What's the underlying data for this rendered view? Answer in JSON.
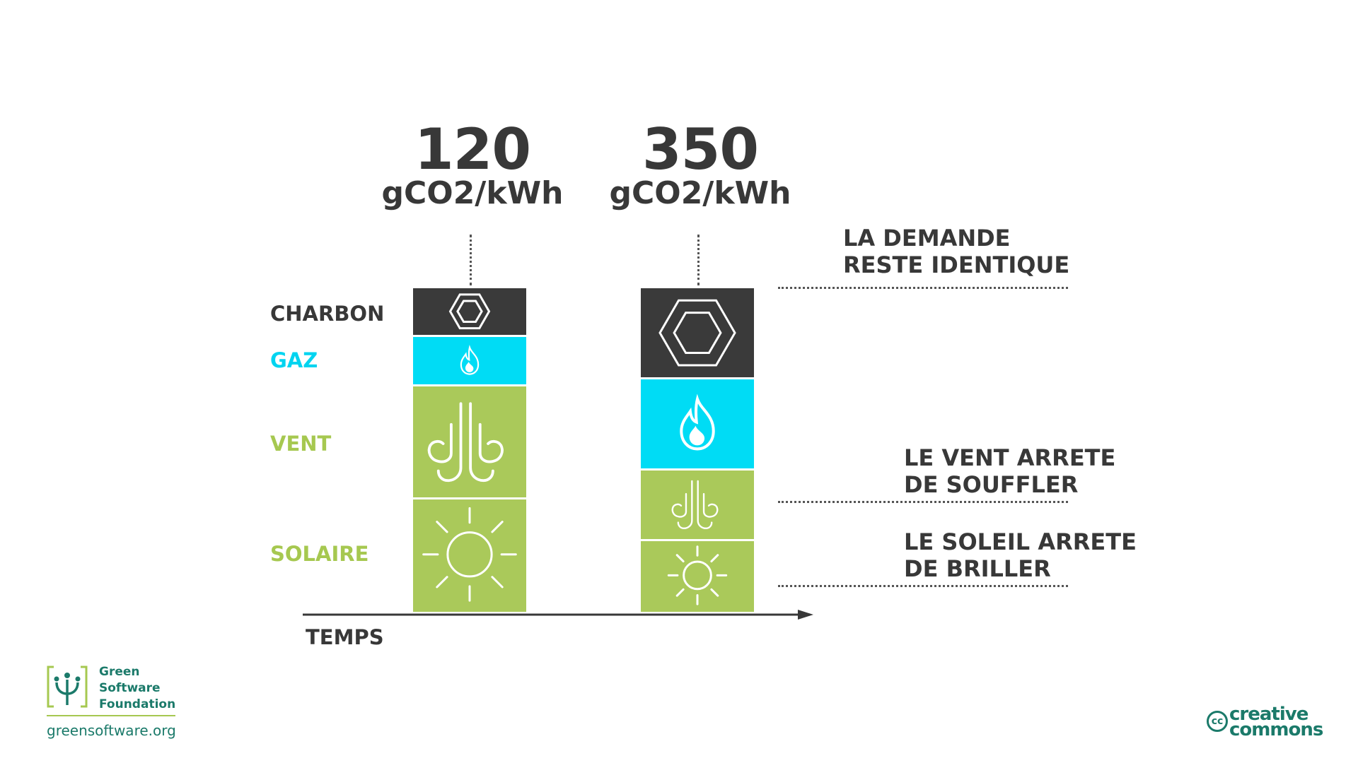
{
  "bars": [
    {
      "value": "120",
      "unit": "gCO2/kWh",
      "segments": [
        {
          "source": "CHARBON",
          "icon": "coal-hexagon-icon",
          "color": "#3a3a3a",
          "height_units": 7.0
        },
        {
          "source": "GAZ",
          "icon": "flame-icon",
          "color": "#00dcf5",
          "height_units": 7.2
        },
        {
          "source": "VENT",
          "icon": "wind-icon",
          "color": "#aac95a",
          "height_units": 16.4
        },
        {
          "source": "SOLAIRE",
          "icon": "sun-icon",
          "color": "#aac95a",
          "height_units": 16.2
        }
      ]
    },
    {
      "value": "350",
      "unit": "gCO2/kWh",
      "segments": [
        {
          "source": "CHARBON",
          "icon": "coal-hexagon-icon",
          "color": "#3a3a3a",
          "height_units": 13.2
        },
        {
          "source": "GAZ",
          "icon": "flame-icon",
          "color": "#00dcf5",
          "height_units": 13.2
        },
        {
          "source": "VENT",
          "icon": "wind-icon",
          "color": "#aac95a",
          "height_units": 10.2
        },
        {
          "source": "SOLAIRE",
          "icon": "sun-icon",
          "color": "#aac95a",
          "height_units": 10.2
        }
      ]
    }
  ],
  "legend": [
    {
      "label": "CHARBON",
      "color": "#383838"
    },
    {
      "label": "GAZ",
      "color": "#00d4f0"
    },
    {
      "label": "VENT",
      "color": "#a6c850"
    },
    {
      "label": "SOLAIRE",
      "color": "#a6c850"
    }
  ],
  "annotations": {
    "demand": [
      "LA DEMANDE",
      "RESTE IDENTIQUE"
    ],
    "wind": [
      "LE VENT ARRETE",
      "DE SOUFFLER"
    ],
    "sun": [
      "LE SOLEIL ARRETE",
      "DE BRILLER"
    ]
  },
  "axis_label": "TEMPS",
  "footer": {
    "brand_lines": [
      "Green",
      "Software",
      "Foundation"
    ],
    "url": "greensoftware.org",
    "cc_lines": [
      "creative",
      "commons"
    ],
    "cc_badge": "cc"
  }
}
